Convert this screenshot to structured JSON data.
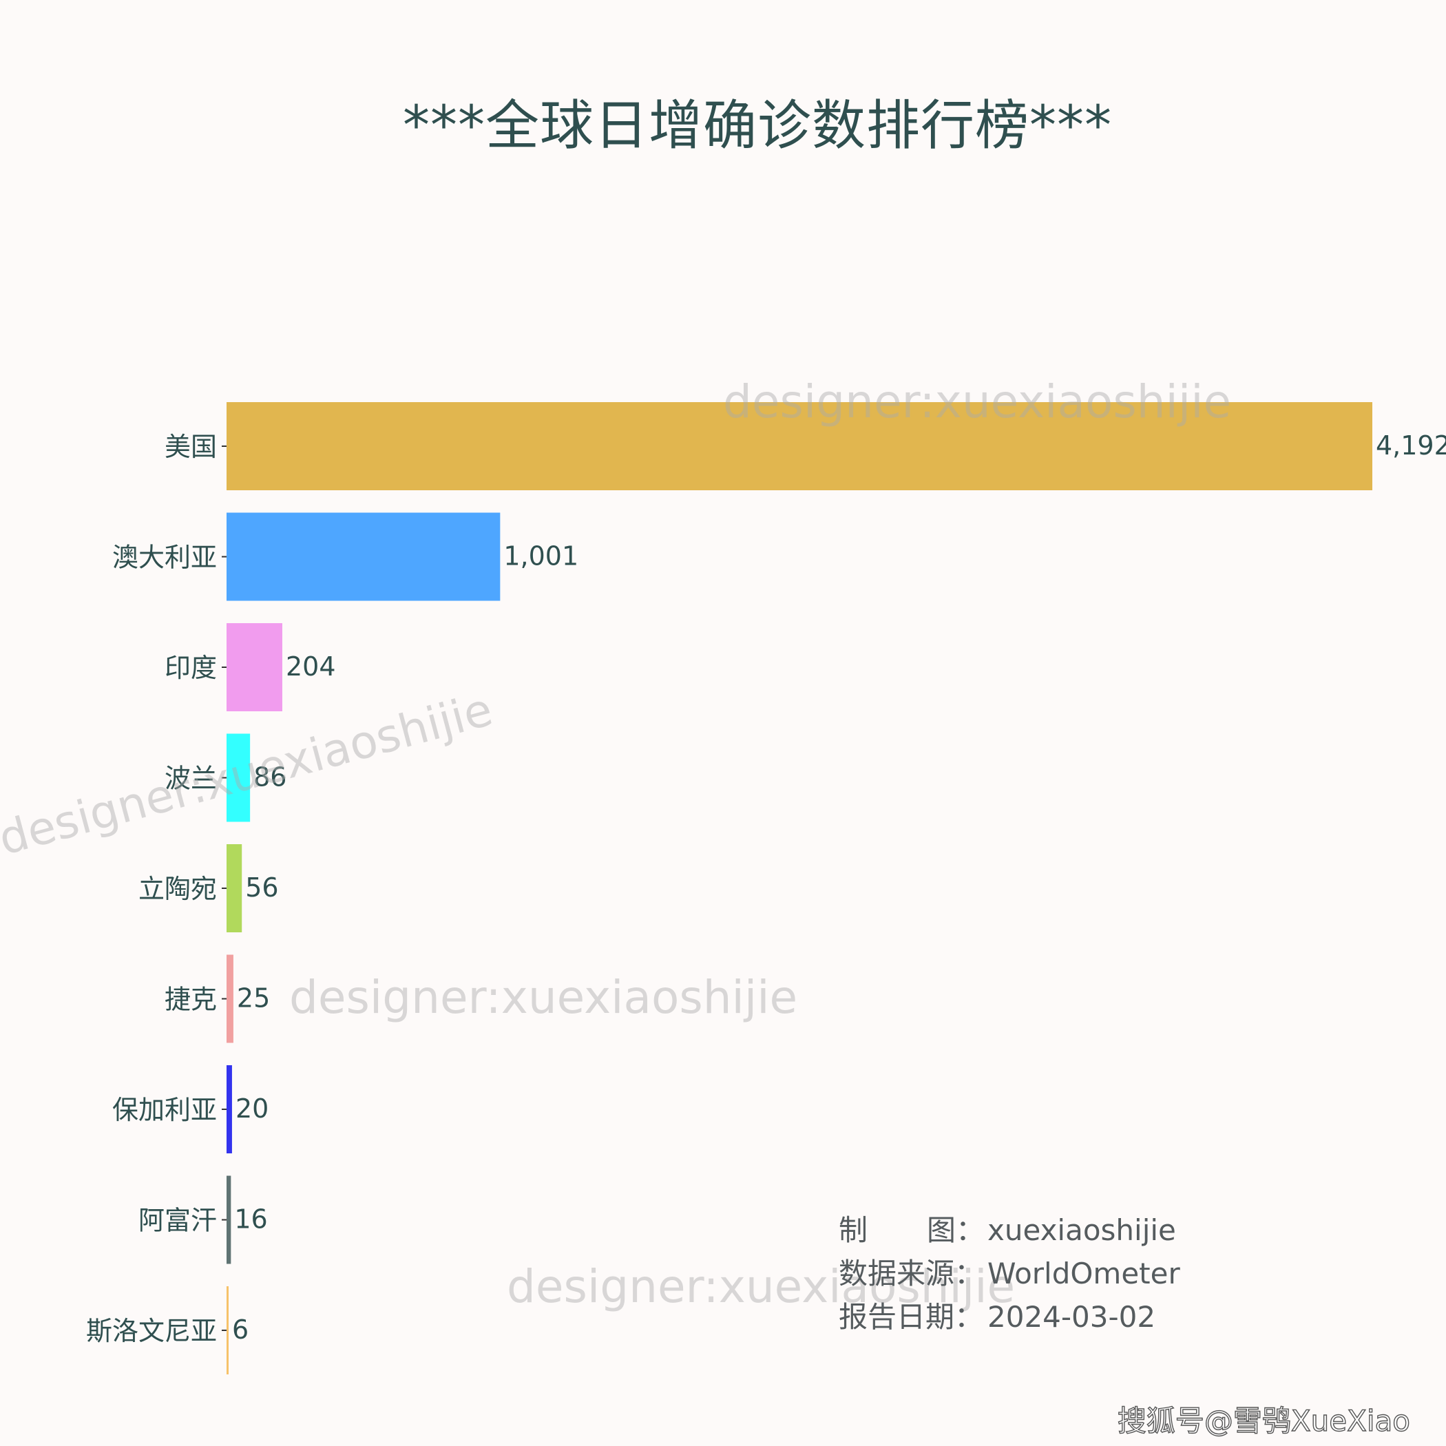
{
  "title": "***全球日增确诊数排行榜***",
  "chart_data": {
    "type": "bar",
    "orientation": "horizontal",
    "title": "***全球日增确诊数排行榜***",
    "categories": [
      "美国",
      "澳大利亚",
      "印度",
      "波兰",
      "立陶宛",
      "捷克",
      "保加利亚",
      "阿富汗",
      "斯洛文尼亚"
    ],
    "values": [
      4192,
      1001,
      204,
      86,
      56,
      25,
      20,
      16,
      6
    ],
    "value_labels": [
      "4,192",
      "1,001",
      "204",
      "86",
      "56",
      "25",
      "20",
      "16",
      "6"
    ],
    "colors": [
      "#e1b64f",
      "#4ea6ff",
      "#f19cee",
      "#33ffff",
      "#b1d95c",
      "#f1a0a0",
      "#3333ee",
      "#5f7373",
      "#f7c26a"
    ],
    "xlim": [
      0,
      4192
    ],
    "grid": false,
    "legend": "none",
    "xaxis_visible": false
  },
  "credits": {
    "maker_label_chars": [
      "制",
      "图："
    ],
    "maker_value": "xuexiaoshijie",
    "source_label": "数据来源：",
    "source_value": "WorldOmeter",
    "date_label": "报告日期：",
    "date_value": "2024-03-02"
  },
  "watermark": "designer:xuexiaoshijie",
  "footer": "搜狐号@雪鸮XueXiao",
  "colors": {
    "text": "#2f4f4f",
    "background": "#fdfaf9"
  }
}
